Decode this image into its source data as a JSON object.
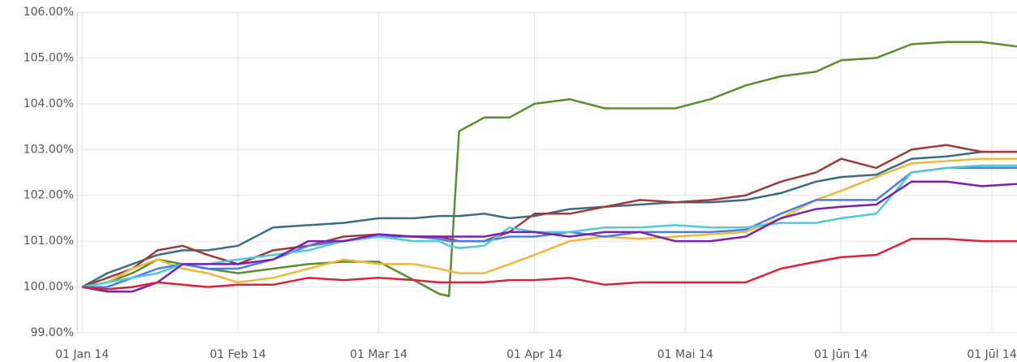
{
  "chart_data": {
    "type": "line",
    "x": [
      0,
      5,
      10,
      15,
      20,
      25,
      31,
      38,
      45,
      52,
      59,
      66,
      71,
      73,
      75,
      80,
      85,
      90,
      97,
      104,
      111,
      118,
      125,
      132,
      139,
      146,
      151,
      158,
      165,
      172,
      179,
      186
    ],
    "xlim": [
      -1,
      186
    ],
    "xticks": [
      {
        "value": 0,
        "label": "01 Jan 14"
      },
      {
        "value": 31,
        "label": "01 Feb 14"
      },
      {
        "value": 59,
        "label": "01 Mar 14"
      },
      {
        "value": 90,
        "label": "01 Apr 14"
      },
      {
        "value": 120,
        "label": "01 Mai 14"
      },
      {
        "value": 151,
        "label": "01 Jūn 14"
      },
      {
        "value": 181,
        "label": "01 Jūl 14"
      }
    ],
    "ylim": [
      99,
      106
    ],
    "yticks": [
      {
        "value": 99,
        "label": "99.00%"
      },
      {
        "value": 100,
        "label": "100.00%"
      },
      {
        "value": 101,
        "label": "101.00%"
      },
      {
        "value": 102,
        "label": "102.00%"
      },
      {
        "value": 103,
        "label": "103.00%"
      },
      {
        "value": 104,
        "label": "104.00%"
      },
      {
        "value": 105,
        "label": "105.00%"
      },
      {
        "value": 106,
        "label": "106.00%"
      }
    ],
    "grid": true,
    "series": [
      {
        "color": "#5b8c2e",
        "values": [
          100,
          100.1,
          100.3,
          100.6,
          100.5,
          100.4,
          100.3,
          100.4,
          100.5,
          100.55,
          100.55,
          100.15,
          99.85,
          99.8,
          103.4,
          103.7,
          103.7,
          104.0,
          104.1,
          103.9,
          103.9,
          103.9,
          104.1,
          104.4,
          104.6,
          104.7,
          104.95,
          105.0,
          105.3,
          105.35,
          105.35,
          105.25
        ]
      },
      {
        "color": "#3d6b7f",
        "values": [
          100,
          100.3,
          100.5,
          100.7,
          100.8,
          100.8,
          100.9,
          101.3,
          101.35,
          101.4,
          101.5,
          101.5,
          101.55,
          101.55,
          101.55,
          101.6,
          101.5,
          101.55,
          101.7,
          101.75,
          101.8,
          101.85,
          101.85,
          101.9,
          102.05,
          102.3,
          102.4,
          102.45,
          102.8,
          102.85,
          102.95,
          102.95
        ]
      },
      {
        "color": "#a03a3a",
        "values": [
          100,
          100.2,
          100.4,
          100.8,
          100.9,
          100.7,
          100.5,
          100.8,
          100.9,
          101.1,
          101.15,
          101.1,
          101.1,
          101.05,
          101.0,
          101.0,
          101.2,
          101.6,
          101.6,
          101.75,
          101.9,
          101.85,
          101.9,
          102.0,
          102.3,
          102.5,
          102.8,
          102.6,
          103.0,
          103.1,
          102.95,
          102.95
        ]
      },
      {
        "color": "#f0b83a",
        "values": [
          100,
          100.1,
          100.4,
          100.6,
          100.4,
          100.3,
          100.1,
          100.2,
          100.4,
          100.6,
          100.5,
          100.5,
          100.4,
          100.35,
          100.3,
          100.3,
          100.5,
          100.7,
          101.0,
          101.1,
          101.05,
          101.1,
          101.15,
          101.2,
          101.5,
          101.9,
          102.1,
          102.4,
          102.7,
          102.75,
          102.8,
          102.8
        ]
      },
      {
        "color": "#4a7cf0",
        "values": [
          100,
          100.0,
          100.2,
          100.4,
          100.5,
          100.4,
          100.4,
          100.6,
          100.9,
          101.0,
          101.1,
          101.1,
          101.05,
          101.0,
          101.0,
          101.0,
          101.1,
          101.1,
          101.2,
          101.1,
          101.2,
          101.2,
          101.2,
          101.25,
          101.6,
          101.9,
          101.9,
          101.9,
          102.5,
          102.6,
          102.6,
          102.6
        ]
      },
      {
        "color": "#4ecbd6",
        "values": [
          100,
          100.1,
          100.2,
          100.3,
          100.5,
          100.5,
          100.6,
          100.7,
          100.8,
          101.0,
          101.1,
          101.0,
          101.0,
          100.9,
          100.85,
          100.9,
          101.3,
          101.2,
          101.2,
          101.3,
          101.3,
          101.35,
          101.3,
          101.3,
          101.4,
          101.4,
          101.5,
          101.6,
          102.5,
          102.6,
          102.65,
          102.65
        ]
      },
      {
        "color": "#7a1fb0",
        "values": [
          100,
          99.9,
          99.9,
          100.1,
          100.5,
          100.5,
          100.5,
          100.6,
          101.0,
          101.0,
          101.15,
          101.1,
          101.1,
          101.1,
          101.1,
          101.1,
          101.2,
          101.2,
          101.1,
          101.2,
          101.2,
          101.0,
          101.0,
          101.1,
          101.5,
          101.7,
          101.75,
          101.8,
          102.3,
          102.3,
          102.2,
          102.25
        ]
      },
      {
        "color": "#e0203a",
        "values": [
          100,
          99.95,
          100.0,
          100.1,
          100.05,
          100.0,
          100.05,
          100.05,
          100.2,
          100.15,
          100.2,
          100.15,
          100.1,
          100.1,
          100.1,
          100.1,
          100.15,
          100.15,
          100.2,
          100.05,
          100.1,
          100.1,
          100.1,
          100.1,
          100.4,
          100.55,
          100.65,
          100.7,
          101.05,
          101.05,
          101.0,
          101.0
        ]
      }
    ]
  }
}
